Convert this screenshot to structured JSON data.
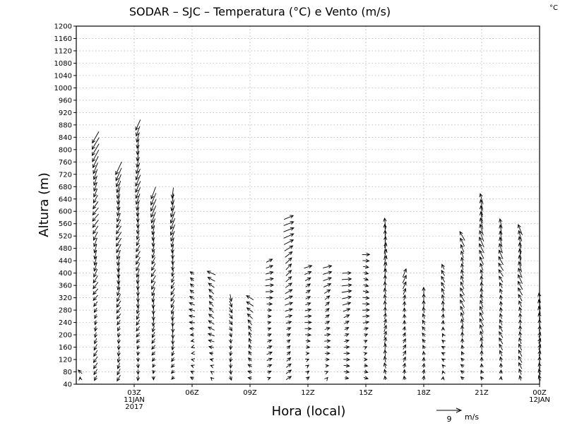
{
  "chart_data": {
    "type": "vector-field",
    "title": "SODAR – SJC – Temperatura (°C) e Vento (m/s)",
    "unit_corner": "°C",
    "xlabel": "Hora (local)",
    "ylabel": "Altura (m)",
    "y_axis": {
      "range": [
        40,
        1200
      ],
      "step": 40,
      "grid": true
    },
    "x_axis": {
      "range_hours": [
        0,
        24
      ],
      "ticks": [
        {
          "hour": 3,
          "lines": [
            "03Z",
            "11JAN",
            "2017"
          ]
        },
        {
          "hour": 6,
          "lines": [
            "06Z"
          ]
        },
        {
          "hour": 9,
          "lines": [
            "09Z"
          ]
        },
        {
          "hour": 12,
          "lines": [
            "12Z"
          ]
        },
        {
          "hour": 15,
          "lines": [
            "15Z"
          ]
        },
        {
          "hour": 18,
          "lines": [
            "18Z"
          ]
        },
        {
          "hour": 21,
          "lines": [
            "21Z"
          ]
        },
        {
          "hour": 24,
          "lines": [
            "00Z",
            "12JAN"
          ]
        }
      ],
      "grid": true
    },
    "reference_vector": {
      "value": 9,
      "unit": "m/s"
    },
    "profiles": [
      {
        "hour": 0.2,
        "top": 80,
        "u": -1.5,
        "v": 1.0
      },
      {
        "hour": 1.0,
        "top": 840,
        "u": -1.5,
        "v": -3.0
      },
      {
        "hour": 2.2,
        "top": 740,
        "u": -1.2,
        "v": -3.2
      },
      {
        "hour": 3.2,
        "top": 880,
        "u": -1.0,
        "v": -3.2
      },
      {
        "hour": 4.0,
        "top": 660,
        "u": -1.0,
        "v": -3.0
      },
      {
        "hour": 5.0,
        "top": 660,
        "u": -0.8,
        "v": -3.0
      },
      {
        "hour": 6.0,
        "top": 400,
        "u": -1.5,
        "v": 0.5
      },
      {
        "hour": 7.0,
        "top": 410,
        "u": -2.0,
        "v": 1.2
      },
      {
        "hour": 8.0,
        "top": 320,
        "u": 0.5,
        "v": -2.0
      },
      {
        "hour": 9.0,
        "top": 320,
        "u": -1.5,
        "v": 1.5
      },
      {
        "hour": 10.0,
        "top": 440,
        "u": 2.0,
        "v": 0.5
      },
      {
        "hour": 11.0,
        "top": 580,
        "u": 2.5,
        "v": 1.5
      },
      {
        "hour": 12.0,
        "top": 420,
        "u": 2.0,
        "v": 0.5
      },
      {
        "hour": 13.0,
        "top": 420,
        "u": 2.0,
        "v": 0.8
      },
      {
        "hour": 14.0,
        "top": 400,
        "u": 2.5,
        "v": 0.5
      },
      {
        "hour": 15.0,
        "top": 460,
        "u": 2.0,
        "v": 0.0
      },
      {
        "hour": 16.0,
        "top": 560,
        "u": 0.2,
        "v": 3.0
      },
      {
        "hour": 17.0,
        "top": 400,
        "u": 0.5,
        "v": 2.0
      },
      {
        "hour": 18.0,
        "top": 340,
        "u": -0.5,
        "v": 2.0
      },
      {
        "hour": 19.0,
        "top": 420,
        "u": -0.5,
        "v": 1.5
      },
      {
        "hour": 20.0,
        "top": 520,
        "u": -1.0,
        "v": 2.5
      },
      {
        "hour": 21.0,
        "top": 640,
        "u": -1.0,
        "v": 3.0
      },
      {
        "hour": 22.0,
        "top": 560,
        "u": -1.0,
        "v": 2.5
      },
      {
        "hour": 23.0,
        "top": 540,
        "u": -1.0,
        "v": 3.0
      },
      {
        "hour": 24.0,
        "top": 320,
        "u": 0.0,
        "v": 2.5
      }
    ]
  }
}
